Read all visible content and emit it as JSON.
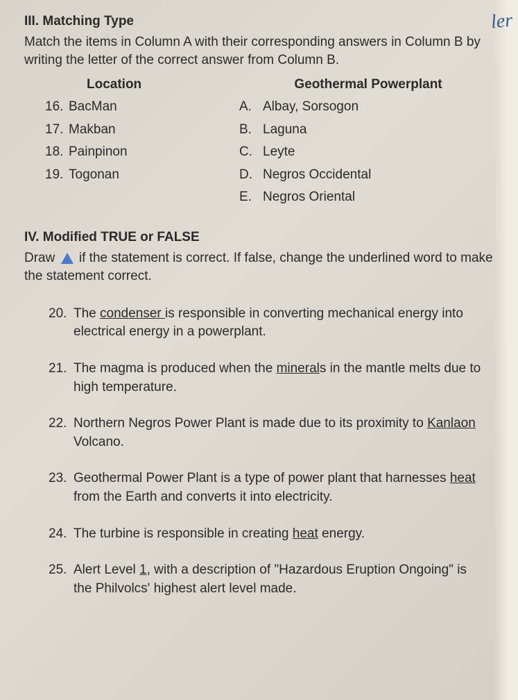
{
  "section3": {
    "title": "III. Matching Type",
    "instructions": "Match the items in Column A with their corresponding answers in Column B by writing the letter of the correct answer from Column B.",
    "leftHeader": "Location",
    "rightHeader": "Geothermal Powerplant",
    "leftItems": [
      {
        "num": "16.",
        "text": "BacMan"
      },
      {
        "num": "17.",
        "text": "Makban"
      },
      {
        "num": "18.",
        "text": "Painpinon"
      },
      {
        "num": "19.",
        "text": "Togonan"
      }
    ],
    "rightItems": [
      {
        "letter": "A.",
        "text": "Albay, Sorsogon"
      },
      {
        "letter": "B.",
        "text": "Laguna"
      },
      {
        "letter": "C.",
        "text": "Leyte"
      },
      {
        "letter": "D.",
        "text": "Negros Occidental"
      },
      {
        "letter": "E.",
        "text": "Negros Oriental"
      }
    ]
  },
  "section4": {
    "title": "IV. Modified TRUE or FALSE",
    "instructionsPre": "Draw ",
    "instructionsPost": " if the statement is correct. If false, change the underlined word to make the statement correct.",
    "questions": [
      {
        "num": "20.",
        "pre": "The ",
        "u": "condenser ",
        "post": "is responsible in converting mechanical energy into electrical energy in a powerplant."
      },
      {
        "num": "21.",
        "pre": "The magma is produced when the ",
        "u": "mineral",
        "post": "s in the mantle melts due to high temperature."
      },
      {
        "num": "22.",
        "pre": "Northern Negros Power Plant is made due to its proximity to ",
        "u": "Kanlaon",
        "post": " Volcano."
      },
      {
        "num": "23.",
        "pre": "Geothermal Power Plant is a type of power plant that harnesses ",
        "u": "heat",
        "post": " from the Earth and converts it into electricity."
      },
      {
        "num": "24.",
        "pre": "The turbine is responsible in creating ",
        "u": "heat",
        "post": " energy."
      },
      {
        "num": "25.",
        "pre": "Alert Level ",
        "u": "1",
        "post": ", with a description of \"Hazardous Eruption Ongoing\" is the Philvolcs' highest alert level made."
      }
    ]
  },
  "handwriting": "ler"
}
